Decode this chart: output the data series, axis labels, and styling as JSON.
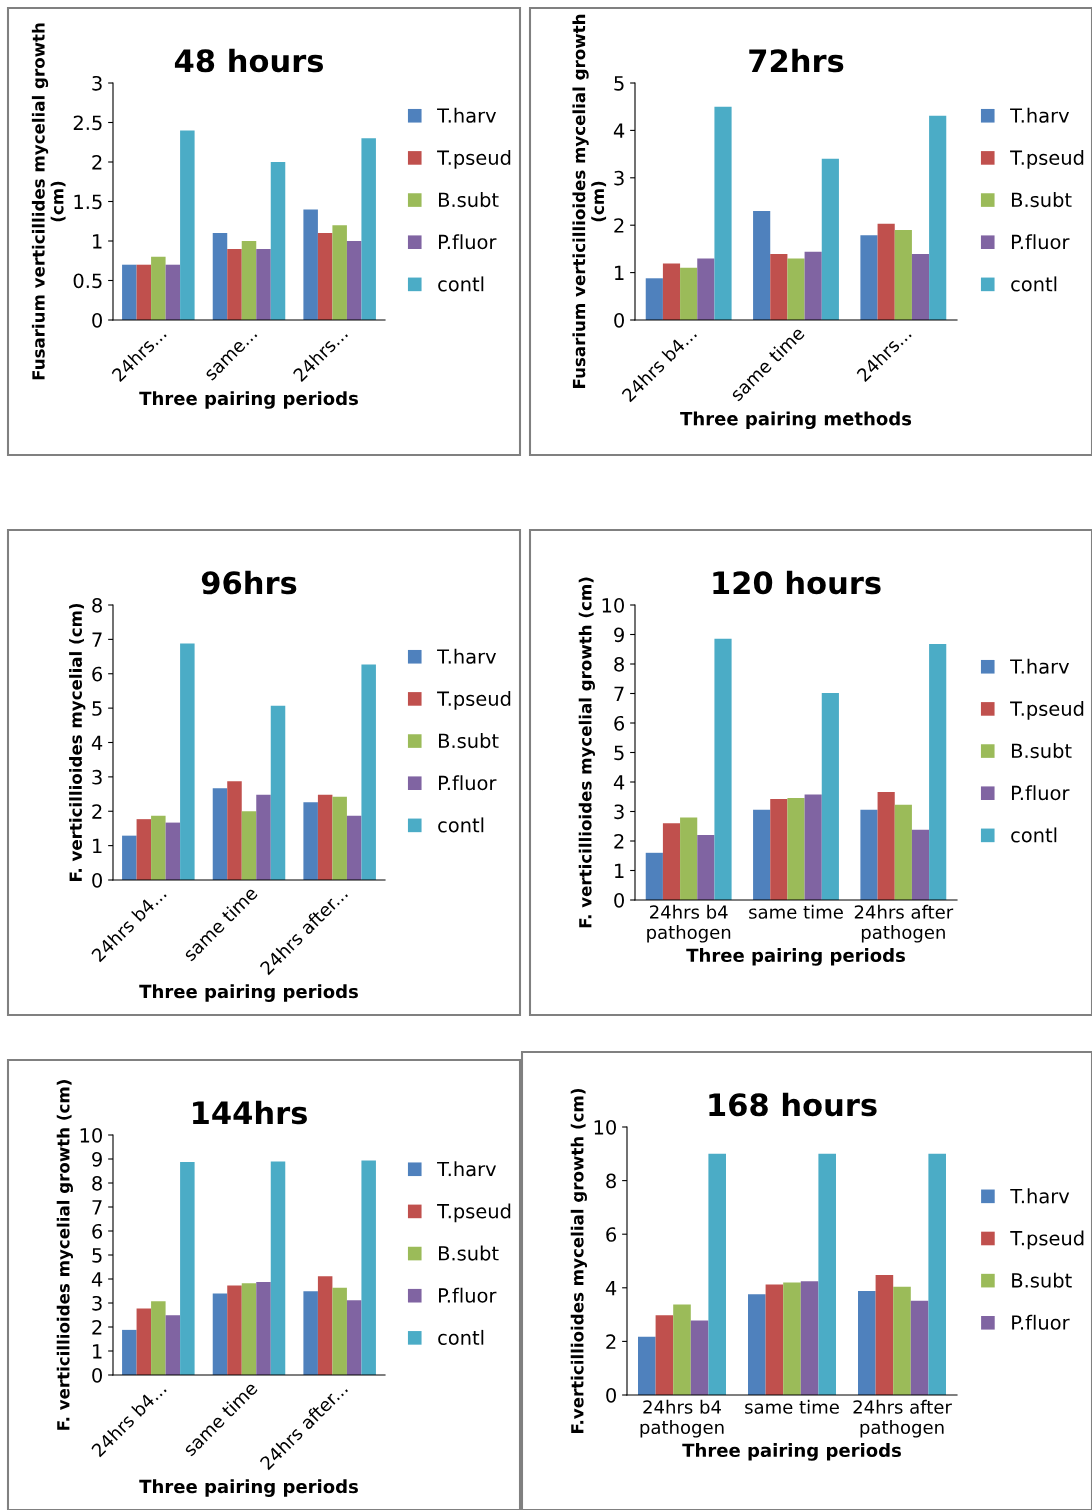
{
  "chart_data": [
    {
      "type": "bar",
      "title": "48 hours",
      "xlabel": "Three pairing periods",
      "ylabel": "Fusarium verticillides mycelial growth (cm)",
      "categories": [
        "24hrs...",
        "same...",
        "24hrs..."
      ],
      "ylim": [
        0,
        3
      ],
      "yticks": [
        0,
        0.5,
        1,
        1.5,
        2,
        2.5,
        3
      ],
      "legend": "right",
      "series": [
        {
          "name": "T.harv",
          "color": "#4f81bd",
          "values": [
            0.7,
            1.1,
            1.4
          ]
        },
        {
          "name": "T.pseud",
          "color": "#c0504d",
          "values": [
            0.7,
            0.9,
            1.1
          ]
        },
        {
          "name": "B.subt",
          "color": "#9bbb59",
          "values": [
            0.8,
            1.0,
            1.2
          ]
        },
        {
          "name": "P.fluor",
          "color": "#8064a2",
          "values": [
            0.7,
            0.9,
            1.0
          ]
        },
        {
          "name": "contl",
          "color": "#4bacc6",
          "values": [
            2.4,
            2.0,
            2.3
          ]
        }
      ]
    },
    {
      "type": "bar",
      "title": "72hrs",
      "xlabel": "Three pairing methods",
      "ylabel": "Fusarium verticillioides mycelial growth (cm)",
      "categories": [
        "24hrs b4...",
        "same time",
        "24hrs..."
      ],
      "ylim": [
        0,
        5
      ],
      "yticks": [
        0,
        1,
        2,
        3,
        4,
        5
      ],
      "legend": "right",
      "series": [
        {
          "name": "T.harv",
          "color": "#4f81bd",
          "values": [
            0.88,
            2.3,
            1.79
          ]
        },
        {
          "name": "T.pseud",
          "color": "#c0504d",
          "values": [
            1.19,
            1.39,
            2.03
          ]
        },
        {
          "name": "B.subt",
          "color": "#9bbb59",
          "values": [
            1.1,
            1.3,
            1.9
          ]
        },
        {
          "name": "P.fluor",
          "color": "#8064a2",
          "values": [
            1.3,
            1.44,
            1.39
          ]
        },
        {
          "name": "contl",
          "color": "#4bacc6",
          "values": [
            4.5,
            3.4,
            4.31
          ]
        }
      ]
    },
    {
      "type": "bar",
      "title": "96hrs",
      "xlabel": "Three pairing periods",
      "ylabel": "F. verticillioides mycelial (cm)",
      "categories": [
        "24hrs b4...",
        "same time",
        "24hrs after..."
      ],
      "ylim": [
        0,
        8
      ],
      "yticks": [
        0,
        1,
        2,
        3,
        4,
        5,
        6,
        7,
        8
      ],
      "legend": "right",
      "series": [
        {
          "name": "T.harv",
          "color": "#4f81bd",
          "values": [
            1.29,
            2.67,
            2.26
          ]
        },
        {
          "name": "T.pseud",
          "color": "#c0504d",
          "values": [
            1.77,
            2.87,
            2.48
          ]
        },
        {
          "name": "B.subt",
          "color": "#9bbb59",
          "values": [
            1.87,
            2.0,
            2.42
          ]
        },
        {
          "name": "P.fluor",
          "color": "#8064a2",
          "values": [
            1.67,
            2.48,
            1.87
          ]
        },
        {
          "name": "contl",
          "color": "#4bacc6",
          "values": [
            6.88,
            5.07,
            6.27
          ]
        }
      ]
    },
    {
      "type": "bar",
      "title": "120 hours",
      "xlabel": "Three pairing periods",
      "ylabel": "F. verticillioides mycelial growth (cm)",
      "categories": [
        "24hrs b4 pathogen",
        "same time",
        "24hrs after pathogen"
      ],
      "ylim": [
        0,
        10
      ],
      "yticks": [
        0,
        1,
        2,
        3,
        4,
        5,
        6,
        7,
        8,
        9,
        10
      ],
      "legend": "right",
      "series": [
        {
          "name": "T.harv",
          "color": "#4f81bd",
          "values": [
            1.6,
            3.06,
            3.06
          ]
        },
        {
          "name": "T.pseud",
          "color": "#c0504d",
          "values": [
            2.6,
            3.42,
            3.66
          ]
        },
        {
          "name": "B.subt",
          "color": "#9bbb59",
          "values": [
            2.8,
            3.46,
            3.23
          ]
        },
        {
          "name": "P.fluor",
          "color": "#8064a2",
          "values": [
            2.2,
            3.58,
            2.38
          ]
        },
        {
          "name": "contl",
          "color": "#4bacc6",
          "values": [
            8.86,
            7.02,
            8.68
          ]
        }
      ]
    },
    {
      "type": "bar",
      "title": "144hrs",
      "xlabel": "Three pairing periods",
      "ylabel": "F. verticillioides mycelial growth (cm)",
      "categories": [
        "24hrs b4...",
        "same time",
        "24hrs after..."
      ],
      "ylim": [
        0,
        10
      ],
      "yticks": [
        0,
        1,
        2,
        3,
        4,
        5,
        6,
        7,
        8,
        9,
        10
      ],
      "legend": "right",
      "series": [
        {
          "name": "T.harv",
          "color": "#4f81bd",
          "values": [
            1.88,
            3.4,
            3.49
          ]
        },
        {
          "name": "T.pseud",
          "color": "#c0504d",
          "values": [
            2.77,
            3.73,
            4.11
          ]
        },
        {
          "name": "B.subt",
          "color": "#9bbb59",
          "values": [
            3.07,
            3.82,
            3.64
          ]
        },
        {
          "name": "P.fluor",
          "color": "#8064a2",
          "values": [
            2.49,
            3.87,
            3.11
          ]
        },
        {
          "name": "contl",
          "color": "#4bacc6",
          "values": [
            8.87,
            8.9,
            8.94
          ]
        }
      ]
    },
    {
      "type": "bar",
      "title": "168 hours",
      "xlabel": "Three pairing periods",
      "ylabel": "F.verticillioides mycelial growth (cm)",
      "categories": [
        "24hrs b4 pathogen",
        "same time",
        "24hrs after pathogen"
      ],
      "ylim": [
        0,
        10
      ],
      "yticks": [
        0,
        2,
        4,
        6,
        8,
        10
      ],
      "legend": "right",
      "series": [
        {
          "name": "T.harv",
          "color": "#4f81bd",
          "values": [
            2.17,
            3.76,
            3.88
          ]
        },
        {
          "name": "T.pseud",
          "color": "#c0504d",
          "values": [
            2.98,
            4.12,
            4.48
          ]
        },
        {
          "name": "B.subt",
          "color": "#9bbb59",
          "values": [
            3.38,
            4.2,
            4.04
          ]
        },
        {
          "name": "P.fluor",
          "color": "#8064a2",
          "values": [
            2.78,
            4.24,
            3.52
          ]
        },
        {
          "color": "#4bacc6",
          "values": [
            9.0,
            9.0,
            9.0
          ]
        }
      ]
    }
  ]
}
